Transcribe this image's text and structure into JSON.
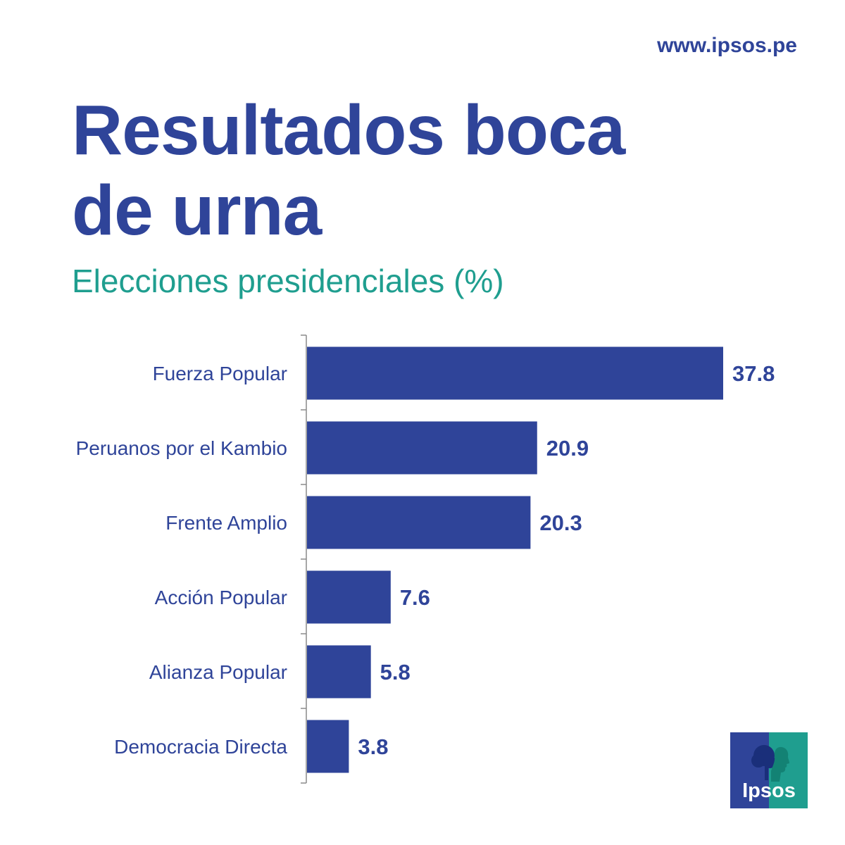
{
  "header": {
    "website": "www.ipsos.pe",
    "title_line1": "Resultados boca",
    "title_line2": "de urna",
    "subtitle": "Elecciones presidenciales (%)"
  },
  "colors": {
    "brand_blue": "#2f4499",
    "accent_teal": "#1f9e8f"
  },
  "chart_data": {
    "type": "bar",
    "orientation": "horizontal",
    "title": "Elecciones presidenciales (%)",
    "categories": [
      "Fuerza Popular",
      "Peruanos por el Kambio",
      "Frente Amplio",
      "Acción Popular",
      "Alianza Popular",
      "Democracia Directa"
    ],
    "values": [
      37.8,
      20.9,
      20.3,
      7.6,
      5.8,
      3.8
    ],
    "value_labels": [
      "37.8",
      "20.9",
      "20.3",
      "7.6",
      "5.8",
      "3.8"
    ],
    "xlabel": "",
    "ylabel": "",
    "xlim": [
      0,
      37.8
    ],
    "grid": false,
    "legend": "none"
  },
  "logo": {
    "text": "Ipsos",
    "icon": "ipsos-logo-icon"
  }
}
